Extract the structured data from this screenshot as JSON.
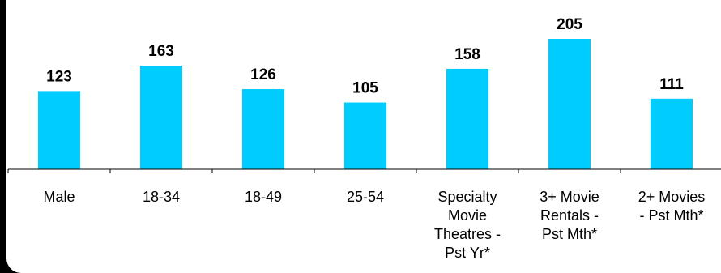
{
  "chart_data": {
    "type": "bar",
    "categories": [
      "Male",
      "18-34",
      "18-49",
      "25-54",
      "Specialty Movie Theatres - Pst Yr*",
      "3+ Movie Rentals - Pst Mth*",
      "2+ Movies - Pst Mth*"
    ],
    "category_lines": [
      [
        "Male"
      ],
      [
        "18-34"
      ],
      [
        "18-49"
      ],
      [
        "25-54"
      ],
      [
        "Specialty",
        "Movie",
        "Theatres -",
        "Pst Yr*"
      ],
      [
        "3+ Movie",
        "Rentals -",
        "Pst Mth*"
      ],
      [
        "2+ Movies",
        "- Pst Mth*"
      ]
    ],
    "values": [
      123,
      163,
      126,
      105,
      158,
      205,
      111
    ],
    "title": "",
    "xlabel": "",
    "ylabel": "",
    "ylim": [
      0,
      220
    ],
    "bar_color": "#00ccff",
    "grid": false,
    "data_labels": true
  }
}
